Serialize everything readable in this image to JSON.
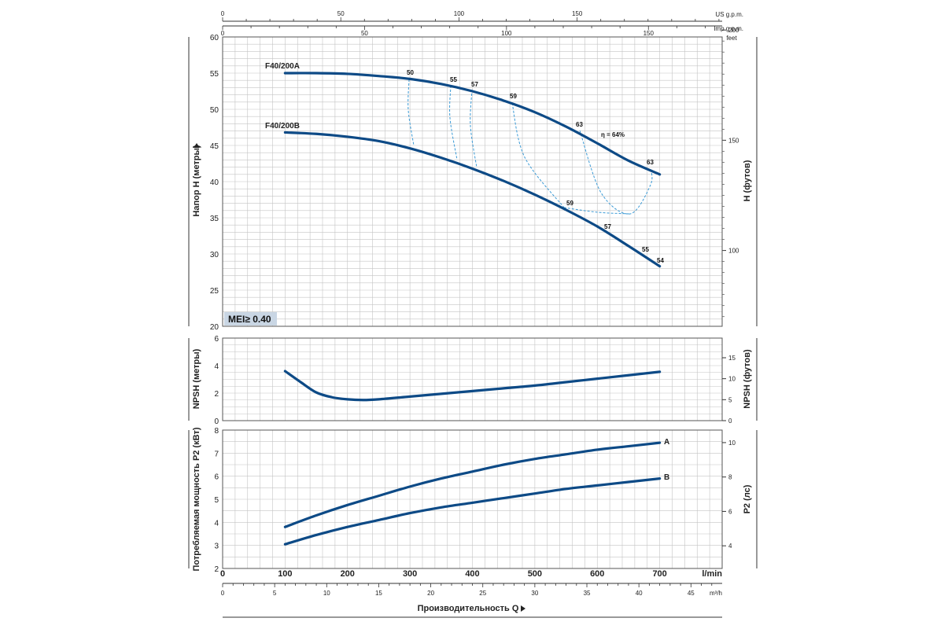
{
  "chart_data": [
    {
      "type": "line",
      "name": "head",
      "ylabel": "Напор H (метры)",
      "ylabel_right": "H (футов)",
      "yticks": [
        20,
        25,
        30,
        35,
        40,
        45,
        50,
        55,
        60
      ],
      "ylim": [
        20,
        60
      ],
      "yticks_right": [
        100,
        150,
        200
      ],
      "right_unit": "feet",
      "series": [
        {
          "name": "F40/200A",
          "x": [
            100,
            150,
            200,
            250,
            300,
            350,
            400,
            450,
            500,
            550,
            600,
            650,
            700
          ],
          "y": [
            55.0,
            55.0,
            54.9,
            54.6,
            54.2,
            53.5,
            52.5,
            51.2,
            49.6,
            47.6,
            45.3,
            42.9,
            41.0
          ]
        },
        {
          "name": "F40/200B",
          "x": [
            100,
            150,
            200,
            250,
            300,
            350,
            400,
            450,
            500,
            550,
            600,
            650,
            700
          ],
          "y": [
            46.8,
            46.6,
            46.2,
            45.6,
            44.6,
            43.3,
            41.8,
            40.1,
            38.2,
            36.1,
            33.8,
            31.1,
            28.3
          ]
        }
      ],
      "efficiency_labels": [
        "50",
        "55",
        "57",
        "59",
        "63",
        "η = 64%",
        "63",
        "59",
        "57",
        "55",
        "54"
      ],
      "annotation": "MEI≥ 0.40"
    },
    {
      "type": "line",
      "name": "npsh",
      "ylabel": "NPSH (метры)",
      "ylabel_right": "NPSH (футов)",
      "yticks": [
        0,
        2,
        4,
        6
      ],
      "ylim": [
        0,
        6
      ],
      "yticks_right": [
        0,
        5,
        10,
        15
      ],
      "series": [
        {
          "name": "NPSH",
          "x": [
            100,
            125,
            150,
            175,
            200,
            225,
            250,
            300,
            350,
            400,
            450,
            500,
            550,
            600,
            650,
            700
          ],
          "y": [
            3.6,
            2.8,
            2.05,
            1.7,
            1.55,
            1.5,
            1.55,
            1.75,
            1.95,
            2.15,
            2.35,
            2.55,
            2.8,
            3.05,
            3.3,
            3.55
          ]
        }
      ]
    },
    {
      "type": "line",
      "name": "power",
      "ylabel": "Потребляемая мощность P2 (кВт)",
      "ylabel_right": "P2 (лс)",
      "yticks": [
        2,
        3,
        4,
        5,
        6,
        7,
        8
      ],
      "ylim": [
        2,
        8
      ],
      "yticks_right": [
        4,
        6,
        8,
        10
      ],
      "series": [
        {
          "name": "A",
          "x": [
            100,
            150,
            200,
            250,
            300,
            350,
            400,
            450,
            500,
            550,
            600,
            650,
            700
          ],
          "y": [
            3.8,
            4.3,
            4.75,
            5.15,
            5.55,
            5.9,
            6.2,
            6.5,
            6.75,
            6.95,
            7.15,
            7.3,
            7.45
          ]
        },
        {
          "name": "B",
          "x": [
            100,
            150,
            200,
            250,
            300,
            350,
            400,
            450,
            500,
            550,
            600,
            650,
            700
          ],
          "y": [
            3.05,
            3.45,
            3.8,
            4.1,
            4.4,
            4.65,
            4.85,
            5.05,
            5.25,
            5.45,
            5.6,
            5.75,
            5.9
          ]
        }
      ]
    }
  ],
  "axes": {
    "x_lpm_ticks": [
      0,
      100,
      200,
      300,
      400,
      500,
      600,
      700
    ],
    "x_lpm_unit": "l/min",
    "x_m3h_ticks": [
      0,
      5,
      10,
      15,
      20,
      25,
      30,
      35,
      40,
      45
    ],
    "x_m3h_unit": "m³/h",
    "x_us_ticks": [
      0,
      50,
      100,
      150
    ],
    "x_us_unit": "US g.p.m.",
    "x_imp_ticks": [
      0,
      50,
      100,
      150
    ],
    "x_imp_unit": "Imp g.p.m.",
    "xlabel": "Производительность Q"
  }
}
